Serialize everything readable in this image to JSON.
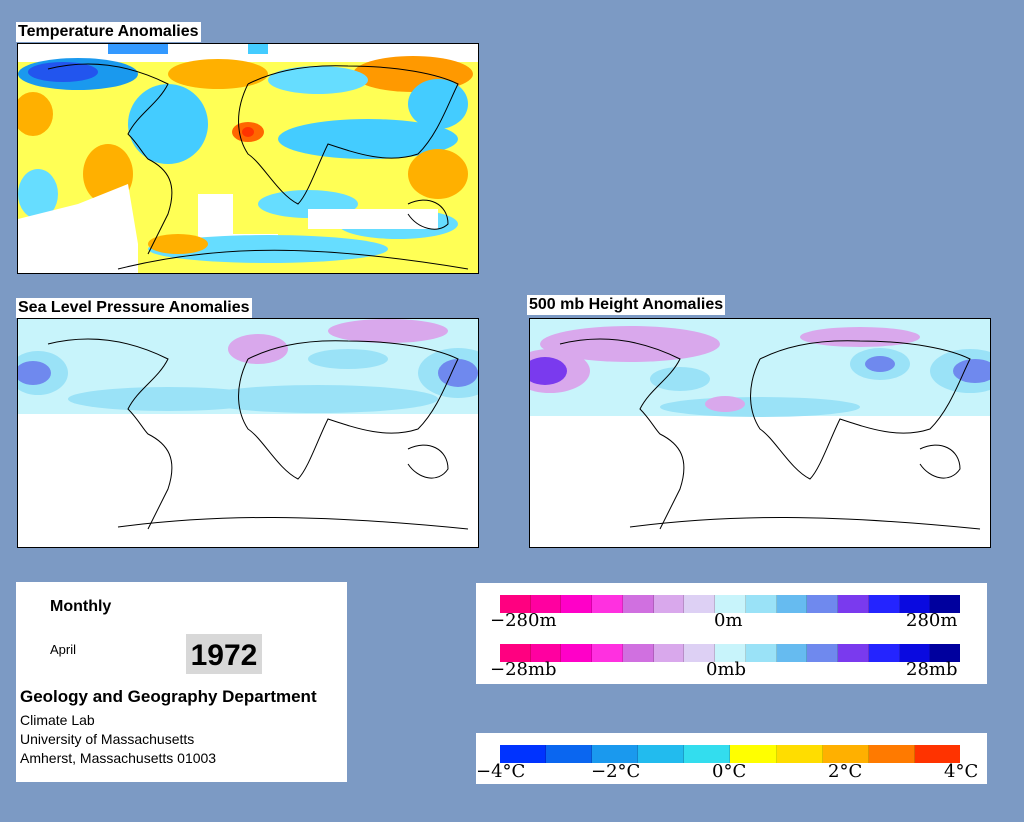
{
  "panels": {
    "temperature_title": "Temperature Anomalies",
    "slp_title": "Sea Level Pressure Anomalies",
    "height_title": "500 mb Height Anomalies"
  },
  "info": {
    "period": "Monthly",
    "month": "April",
    "year": "1972",
    "department": "Geology and Geography Department",
    "lab": "Climate Lab",
    "university": "University of Massachusetts",
    "address": "Amherst, Massachusetts 01003"
  },
  "legends": {
    "height": {
      "left": "−280m",
      "center": "0m",
      "right": "280m",
      "colors": [
        "#ff0080",
        "#ff00a0",
        "#ff00c8",
        "#ff30e0",
        "#d070e0",
        "#d9a8ec",
        "#ddd0f4",
        "#c8f4fb",
        "#9ae2f7",
        "#66bbf0",
        "#6f89ee",
        "#7a3aee",
        "#2424ff",
        "#0a0ae0",
        "#00009e"
      ]
    },
    "pressure": {
      "left": "−28mb",
      "center": "0mb",
      "right": "28mb",
      "colors": [
        "#ff0080",
        "#ff00a0",
        "#ff00c8",
        "#ff30e0",
        "#d070e0",
        "#d9a8ec",
        "#ddd0f4",
        "#c8f4fb",
        "#9ae2f7",
        "#66bbf0",
        "#6f89ee",
        "#7a3aee",
        "#2424ff",
        "#0a0ae0",
        "#00009e"
      ]
    },
    "temperature": {
      "ticks": [
        "−4°C",
        "−2°C",
        "0°C",
        "2°C",
        "4°C"
      ],
      "colors": [
        "#0033ff",
        "#0a66f0",
        "#1a99ee",
        "#22bbee",
        "#33ddee",
        "#ffff00",
        "#ffdd00",
        "#ffb000",
        "#ff7a00",
        "#ff3300"
      ]
    }
  }
}
